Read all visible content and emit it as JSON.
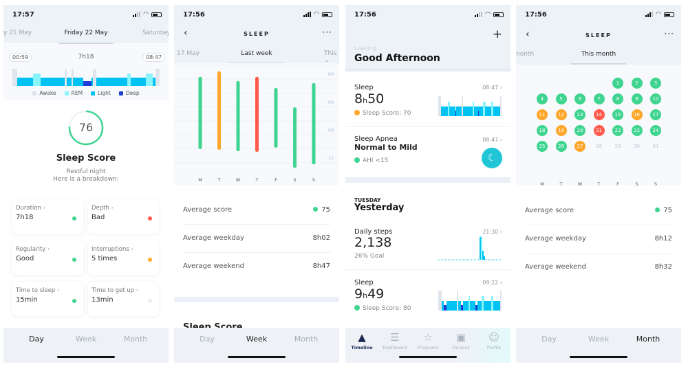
{
  "colors": {
    "green": "#3fd48f",
    "orange": "#ffa62b",
    "red": "#ff5a4c",
    "light": "#00c2f3",
    "rem": "#8af4fb",
    "deep": "#1e3fd6",
    "awake": "#dfe5ec",
    "teal": "#20c6d6",
    "navy": "#1b2a52"
  },
  "panel_day": {
    "status_time": "17:57",
    "tabs": [
      "y 21 May",
      "Friday 22 May",
      "Saturday"
    ],
    "start_time": "00:59",
    "duration": "7h18",
    "end_time": "08:47",
    "hypnogram": [
      [
        "awake",
        12
      ],
      [
        "light",
        40
      ],
      [
        "rem",
        18
      ],
      [
        "light",
        60
      ],
      [
        "awake",
        6
      ],
      [
        "light",
        12
      ],
      [
        "awake",
        4
      ],
      [
        "light",
        25
      ],
      [
        "deep",
        20
      ],
      [
        "light",
        5
      ],
      [
        "awake",
        4
      ],
      [
        "awake",
        4
      ],
      [
        "light",
        62
      ],
      [
        "light",
        16
      ],
      [
        "rem",
        8
      ],
      [
        "light",
        38
      ],
      [
        "rem",
        16
      ],
      [
        "light",
        8
      ],
      [
        "awake",
        10
      ]
    ],
    "legend": [
      {
        "label": "Awake",
        "key": "awake"
      },
      {
        "label": "REM",
        "key": "rem"
      },
      {
        "label": "Light",
        "key": "light"
      },
      {
        "label": "Deep",
        "key": "deep"
      }
    ],
    "score": 76,
    "score_fraction": 0.76,
    "score_title": "Sleep Score",
    "score_line1": "Restful night",
    "score_line2": "Here is a breakdown:",
    "cards": [
      {
        "label": "Duration",
        "value": "7h18",
        "status": "green"
      },
      {
        "label": "Depth",
        "value": "Bad",
        "status": "red"
      },
      {
        "label": "Regularity",
        "value": "Good",
        "status": "green"
      },
      {
        "label": "Interruptions",
        "value": "5 times",
        "status": "orange"
      },
      {
        "label": "Time to sleep",
        "value": "15min",
        "status": "green"
      },
      {
        "label": "Time to get up",
        "value": "13min",
        "status": "none"
      }
    ],
    "bottom_tabs": [
      "Day",
      "Week",
      "Month"
    ],
    "active_tab": 0
  },
  "panel_week": {
    "status_time": "17:56",
    "title": "SLEEP",
    "tabs": [
      "17 May",
      "Last week",
      "This ⌄"
    ],
    "chart_data": {
      "type": "bar",
      "categories": [
        "M",
        "T",
        "W",
        "T",
        "F",
        "S",
        "S"
      ],
      "y_tick_labels": [
        "00",
        "04",
        "08",
        "12"
      ],
      "ylim": [
        -1.5,
        13
      ],
      "series": [
        {
          "start_hour": [
            -0.1,
            -0.9,
            0.5,
            -0.1,
            1.5,
            4.3,
            0.8
          ],
          "end_hour": [
            9.8,
            9.9,
            10.1,
            10.2,
            9.6,
            12.5,
            12.0
          ],
          "status": [
            "green",
            "orange",
            "green",
            "red",
            "green",
            "green",
            "green"
          ]
        }
      ]
    },
    "rows": [
      {
        "label": "Average score",
        "value": "75",
        "status": "green"
      },
      {
        "label": "Average weekday",
        "value": "8h02"
      },
      {
        "label": "Average weekend",
        "value": "8h47"
      }
    ],
    "section_title": "Sleep Score",
    "bottom_tabs": [
      "Day",
      "Week",
      "Month"
    ],
    "active_tab": 1
  },
  "panel_timeline": {
    "status_time": "17:56",
    "loading": "Loading...",
    "greeting": "Good Afternoon",
    "sleep1": {
      "title": "Sleep",
      "hours": "8",
      "h": "h",
      "minutes": "50",
      "time": "08:47",
      "score": "Sleep Score: 70",
      "status": "orange"
    },
    "apnea": {
      "title": "Sleep Apnea",
      "value": "Normal to Mild",
      "time": "08:47",
      "sub": "AHI <15",
      "status": "green"
    },
    "day_label": "TUESDAY",
    "day_title": "Yesterday",
    "steps": {
      "title": "Daily steps",
      "value": "2,138",
      "time": "21:30",
      "goal": "26% Goal"
    },
    "sleep2": {
      "title": "Sleep",
      "hours": "9",
      "h": "h",
      "minutes": "49",
      "time": "09:22",
      "score": "Sleep Score: 80",
      "status": "green"
    },
    "nav": [
      {
        "label": "Timeline",
        "icon": "timeline-icon"
      },
      {
        "label": "Dashboard",
        "icon": "dashboard-icon"
      },
      {
        "label": "Programs",
        "icon": "star-icon"
      },
      {
        "label": "Devices",
        "icon": "watch-icon"
      },
      {
        "label": "Profile",
        "icon": "profile-icon"
      }
    ],
    "active_nav": 0
  },
  "panel_month": {
    "status_time": "17:56",
    "title": "SLEEP",
    "tabs": [
      "nonth",
      "This month"
    ],
    "first_weekday": 4,
    "days": [
      "green",
      "green",
      "green",
      "green",
      "green",
      "green",
      "green",
      "green",
      "green",
      "green",
      "orange",
      "orange",
      "green",
      "red",
      "green",
      "orange",
      "green",
      "green",
      "orange",
      "green",
      "red",
      "green",
      "green",
      "green",
      "green",
      "green",
      "orange",
      "none",
      "none",
      "none",
      "none"
    ],
    "weekday_labels": [
      "M",
      "T",
      "W",
      "T",
      "F",
      "S",
      "S"
    ],
    "rows": [
      {
        "label": "Average score",
        "value": "75",
        "status": "green"
      },
      {
        "label": "Average weekday",
        "value": "8h12"
      },
      {
        "label": "Average weekend",
        "value": "8h32"
      }
    ],
    "bottom_tabs": [
      "Day",
      "Week",
      "Month"
    ],
    "active_tab": 2
  }
}
